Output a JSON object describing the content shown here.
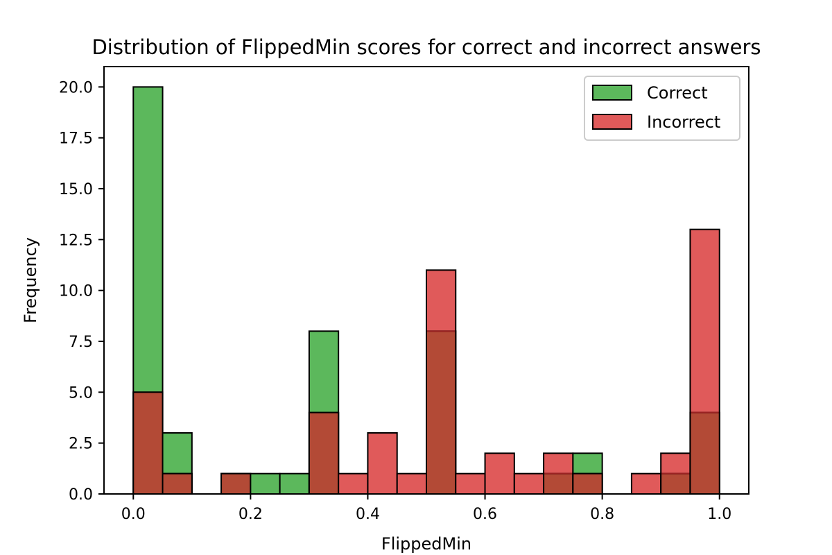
{
  "chart_data": {
    "type": "bar",
    "subtype": "overlapping-histogram",
    "title": "Distribution of FlippedMin scores for correct and incorrect answers",
    "xlabel": "FlippedMin",
    "ylabel": "Frequency",
    "xlim": [
      -0.05,
      1.05
    ],
    "ylim": [
      0,
      21
    ],
    "xticks": [
      0.0,
      0.2,
      0.4,
      0.6,
      0.8,
      1.0
    ],
    "xtick_labels": [
      "0.0",
      "0.2",
      "0.4",
      "0.6",
      "0.8",
      "1.0"
    ],
    "yticks": [
      0.0,
      2.5,
      5.0,
      7.5,
      10.0,
      12.5,
      15.0,
      17.5,
      20.0
    ],
    "ytick_labels": [
      "0.0",
      "2.5",
      "5.0",
      "7.5",
      "10.0",
      "12.5",
      "15.0",
      "17.5",
      "20.0"
    ],
    "grid": false,
    "legend_position": "top-right",
    "bin_edges": [
      0.0,
      0.05,
      0.1,
      0.15,
      0.2,
      0.25,
      0.3,
      0.35,
      0.4,
      0.45,
      0.5,
      0.55,
      0.6,
      0.65,
      0.7,
      0.75,
      0.8,
      0.85,
      0.9,
      0.95,
      1.0
    ],
    "overlap_color": "#b34a36",
    "series": [
      {
        "name": "Correct",
        "color": "#5cb85c",
        "values": [
          20,
          3,
          0,
          1,
          1,
          1,
          8,
          0,
          0,
          0,
          8,
          0,
          0,
          0,
          1,
          2,
          0,
          0,
          1,
          4
        ]
      },
      {
        "name": "Incorrect",
        "color": "#e05a5a",
        "values": [
          5,
          1,
          0,
          1,
          0,
          0,
          4,
          1,
          3,
          1,
          11,
          1,
          2,
          1,
          2,
          1,
          0,
          1,
          2,
          13
        ]
      }
    ]
  }
}
